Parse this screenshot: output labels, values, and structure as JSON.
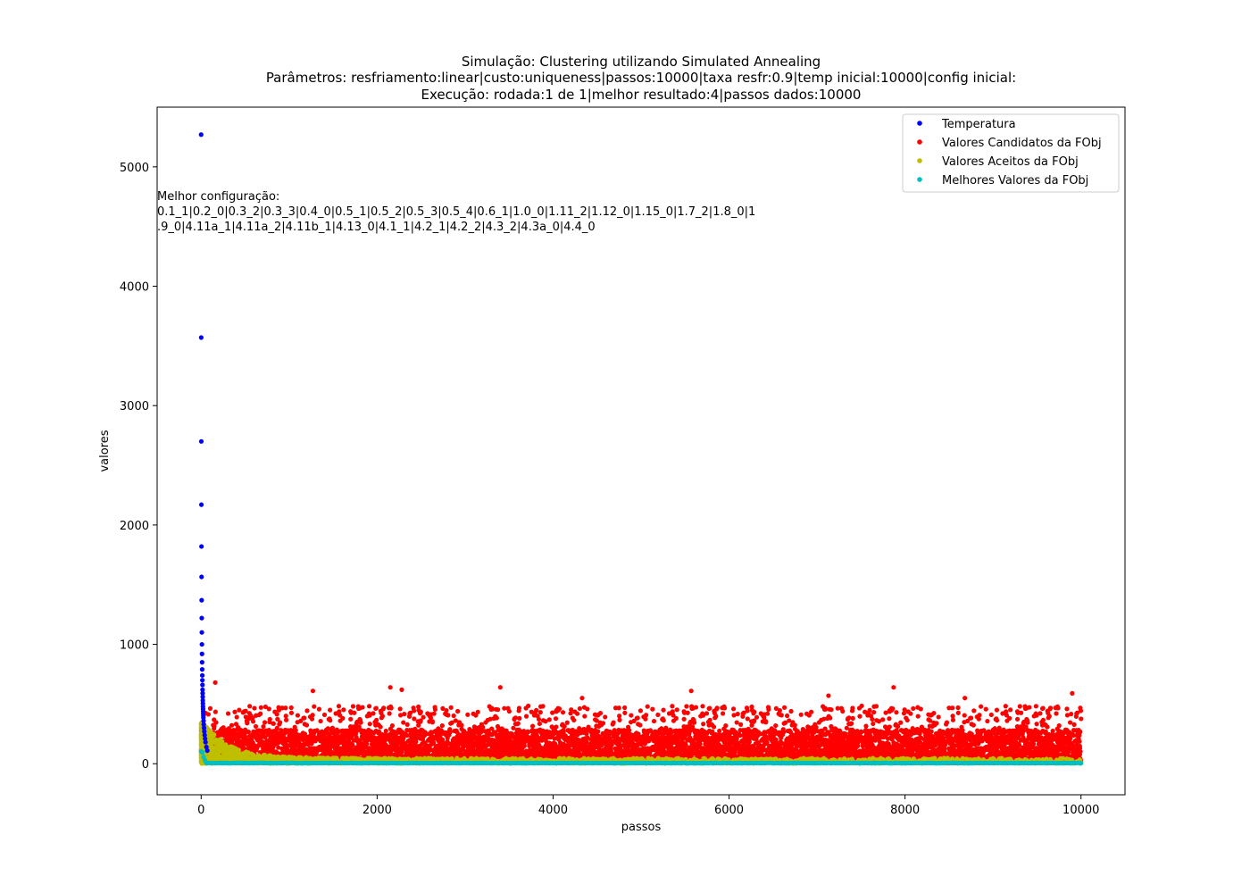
{
  "chart_data": {
    "type": "scatter",
    "title": [
      "Simulação: Clustering utilizando Simulated Annealing",
      "Parâmetros: resfriamento:linear|custo:uniqueness|passos:10000|taxa resfr:0.9|temp inicial:10000|config inicial:",
      "Execução: rodada:1 de 1|melhor resultado:4|passos dados:10000"
    ],
    "xlabel": "passos",
    "ylabel": "valores",
    "xlim": [
      -500,
      10500
    ],
    "ylim": [
      -260,
      5500
    ],
    "x_ticks": [
      0,
      2000,
      4000,
      6000,
      8000,
      10000
    ],
    "y_ticks": [
      0,
      1000,
      2000,
      3000,
      4000,
      5000
    ],
    "annotation": [
      "Melhor configuração:",
      "0.1_1|0.2_0|0.3_2|0.3_3|0.4_0|0.5_1|0.5_2|0.5_3|0.5_4|0.6_1|1.0_0|1.11_2|1.12_0|1.15_0|1.7_2|1.8_0|1",
      ".9_0|4.11a_1|4.11a_2|4.11b_1|4.13_0|4.1_1|4.2_1|4.2_2|4.3_2|4.3a_0|4.4_0"
    ],
    "legend": {
      "placement": "top-right"
    },
    "series": [
      {
        "name": "Temperatura",
        "color": "#0000ff",
        "x": [
          0,
          1,
          2,
          3,
          4,
          5,
          6,
          7,
          8,
          9,
          10,
          11,
          12,
          13,
          14,
          15,
          16,
          17,
          18,
          19,
          20,
          21,
          22,
          23,
          24,
          25,
          26,
          28,
          30,
          33,
          36,
          40,
          45,
          50,
          60,
          70
        ],
        "y": [
          5270,
          3570,
          2700,
          2170,
          1820,
          1565,
          1370,
          1220,
          1100,
          1000,
          920,
          850,
          790,
          740,
          700,
          660,
          620,
          590,
          560,
          530,
          505,
          480,
          460,
          440,
          420,
          400,
          385,
          360,
          330,
          300,
          270,
          240,
          210,
          180,
          140,
          110
        ]
      },
      {
        "name": "Valores Candidatos da FObj",
        "color": "#ff0000",
        "generator": {
          "count": 9000,
          "x_start": 0,
          "x_end": 10000,
          "typical_max": 280,
          "outliers": [
            [
              160,
              680
            ],
            [
              1270,
              610
            ],
            [
              2150,
              640
            ],
            [
              2280,
              620
            ],
            [
              3400,
              640
            ],
            [
              4330,
              550
            ],
            [
              5570,
              610
            ],
            [
              7130,
              570
            ],
            [
              7870,
              640
            ],
            [
              8680,
              550
            ],
            [
              9900,
              590
            ]
          ]
        }
      },
      {
        "name": "Valores Aceitos da FObj",
        "color": "#bfbf00",
        "generator": {
          "count": 1500,
          "x_start": 0,
          "x_end": 10000,
          "peak_x": 0,
          "peak_y": 320,
          "decay_x": 300
        }
      },
      {
        "name": "Melhores Valores da FObj",
        "color": "#00bfbf",
        "generator": {
          "count": 700,
          "x_start": 0,
          "x_end": 10000,
          "peak_y": 140,
          "floor": 4
        }
      }
    ]
  }
}
